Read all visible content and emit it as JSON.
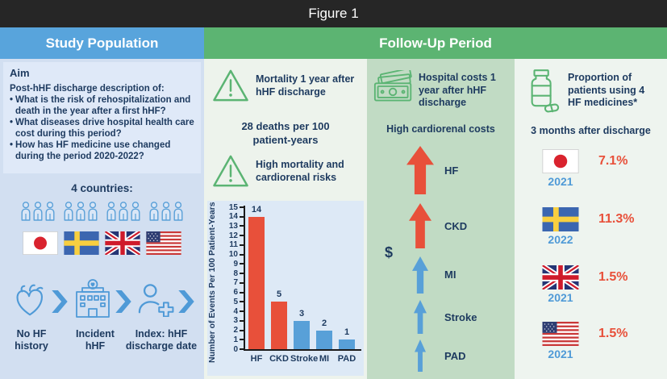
{
  "figure_title": "Figure 1",
  "colors": {
    "topbar": "#262626",
    "blue_header": "#58a4dc",
    "green_header": "#5cb472",
    "left_panel_bg": "#d2dff1",
    "aim_box_bg": "#dfe9f8",
    "column_light_bg": "#edf3ec",
    "column_mid_bg": "#c1dbc4",
    "chart_bg": "#dde9f6",
    "accent_red": "#e8503a",
    "accent_blue": "#4f9ad7",
    "icon_green": "#5bb473",
    "text_navy": "#1d3a5f"
  },
  "study_population": {
    "header": "Study Population",
    "aim": {
      "heading": "Aim",
      "intro": "Post-hHF discharge description of:",
      "bullets": [
        "What is the risk of rehospitalization and death in the year after a first hHF?",
        "What diseases drive hospital health care cost during this period?",
        "How has HF medicine use changed during the period 2020-2022?"
      ]
    },
    "countries_label": "4 countries:",
    "countries": [
      "Japan",
      "Sweden",
      "United Kingdom",
      "United States"
    ],
    "journey": {
      "steps": [
        {
          "label": "No HF history"
        },
        {
          "label": "Incident hHF"
        },
        {
          "label": "Index: hHF discharge date"
        }
      ]
    }
  },
  "follow_up": {
    "header": "Follow-Up Period",
    "mortality": {
      "callout1": "Mortality 1 year after hHF discharge",
      "stat": "28 deaths per 100 patient-years",
      "callout2": "High mortality and cardiorenal risks"
    },
    "costs": {
      "title": "Hospital costs 1 year after hHF discharge",
      "subtitle": "High cardiorenal costs",
      "currency_symbol": "$",
      "items": [
        {
          "label": "HF",
          "color": "#e8503a"
        },
        {
          "label": "CKD",
          "color": "#e8503a"
        },
        {
          "label": "MI",
          "color": "#58a0d8"
        },
        {
          "label": "Stroke",
          "color": "#58a0d8"
        },
        {
          "label": "PAD",
          "color": "#58a0d8"
        }
      ]
    },
    "medicines": {
      "title": "Proportion of patients using 4 HF medicines*",
      "subtitle": "3 months after discharge",
      "rows": [
        {
          "country": "Japan",
          "year": "2021",
          "value": "7.1%"
        },
        {
          "country": "Sweden",
          "year": "2022",
          "value": "11.3%"
        },
        {
          "country": "United Kingdom",
          "year": "2021",
          "value": "1.5%"
        },
        {
          "country": "United States",
          "year": "2021",
          "value": "1.5%"
        }
      ]
    }
  },
  "chart_data": {
    "type": "bar",
    "categories": [
      "HF",
      "CKD",
      "Stroke",
      "MI",
      "PAD"
    ],
    "values": [
      14,
      5,
      3,
      2,
      1
    ],
    "bar_colors": [
      "#e8503a",
      "#e8503a",
      "#58a0d8",
      "#58a0d8",
      "#58a0d8"
    ],
    "xlabel": "",
    "ylabel": "Number of Events Per 100 Patient-Years",
    "ylim": [
      0,
      15
    ],
    "ytick_step": 1,
    "grid": false,
    "legend": false
  }
}
